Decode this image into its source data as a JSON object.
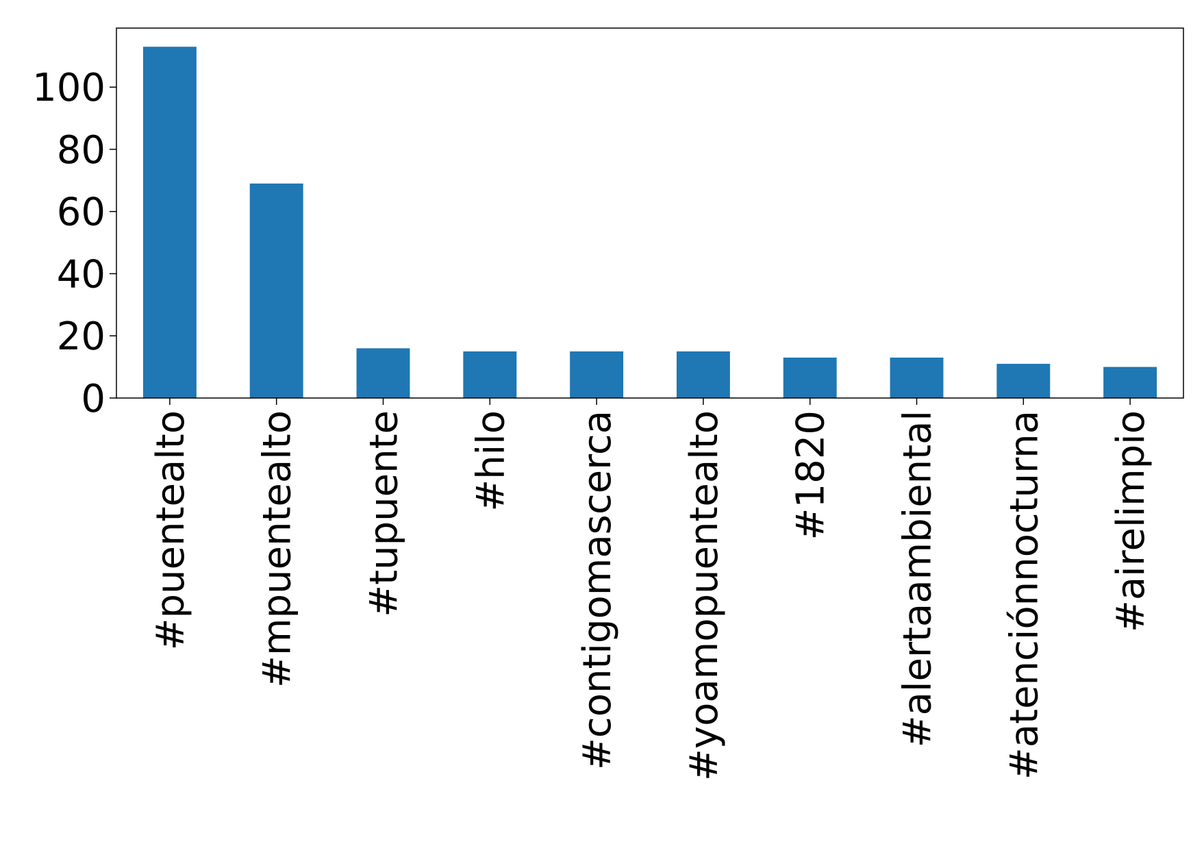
{
  "chart_data": {
    "type": "bar",
    "categories": [
      "#puentealto",
      "#mpuentealto",
      "#tupuente",
      "#hilo",
      "#contigomascerca",
      "#yoamopuentealto",
      "#1820",
      "#alertaambiental",
      "#atenciónnocturna",
      "#airelimpio"
    ],
    "values": [
      113,
      69,
      16,
      15,
      15,
      15,
      13,
      13,
      11,
      10
    ],
    "color": "#1f77b4",
    "ylim": [
      0,
      119
    ],
    "yticks": [
      0,
      20,
      40,
      60,
      80,
      100
    ],
    "grid": false
  }
}
